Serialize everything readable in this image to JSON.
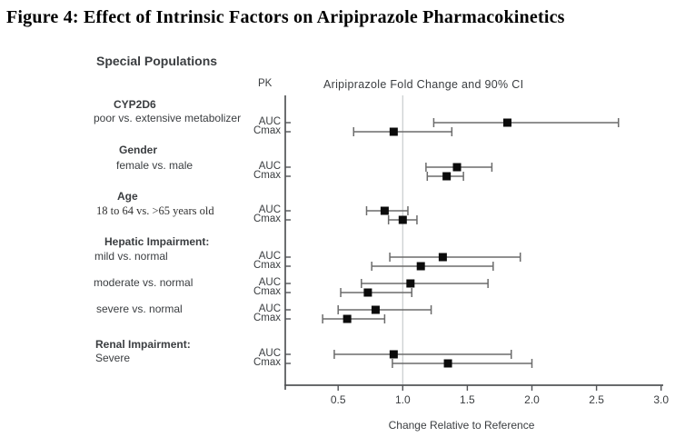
{
  "title": "Figure 4: Effect of Intrinsic Factors on Aripiprazole Pharmacokinetics",
  "chart_data": {
    "type": "forest",
    "section_header": "Special Populations",
    "pk_column_header": "PK",
    "title": "Aripiprazole Fold Change and 90% CI",
    "xlabel": "Change Relative to Reference",
    "xticks": [
      0.5,
      1.0,
      1.5,
      2.0,
      2.5,
      3.0
    ],
    "xtick_labels": [
      "0.5",
      "1.0",
      "1.5",
      "2.0",
      "2.5",
      "3.0"
    ],
    "xlim": [
      0.1,
      3.05
    ],
    "reference_line": 1.0,
    "grid": "single-reference-line",
    "legend": "none",
    "groups": [
      {
        "label": "CYP2D6",
        "sublabel": "poor vs. extensive metabolizer",
        "rows": [
          {
            "pk": "AUC",
            "estimate": 1.81,
            "ci_low": 1.24,
            "ci_high": 2.67
          },
          {
            "pk": "Cmax",
            "estimate": 0.93,
            "ci_low": 0.62,
            "ci_high": 1.38
          }
        ]
      },
      {
        "label": "Gender",
        "sublabel": "female vs. male",
        "rows": [
          {
            "pk": "AUC",
            "estimate": 1.42,
            "ci_low": 1.18,
            "ci_high": 1.69
          },
          {
            "pk": "Cmax",
            "estimate": 1.34,
            "ci_low": 1.19,
            "ci_high": 1.47
          }
        ]
      },
      {
        "label": "Age",
        "sublabel": "18 to 64 vs. >65 years old",
        "rows": [
          {
            "pk": "AUC",
            "estimate": 0.86,
            "ci_low": 0.72,
            "ci_high": 1.04
          },
          {
            "pk": "Cmax",
            "estimate": 1.0,
            "ci_low": 0.89,
            "ci_high": 1.11
          }
        ]
      },
      {
        "label": "Hepatic Impairment:",
        "sublabel": "mild vs. normal",
        "rows": [
          {
            "pk": "AUC",
            "estimate": 1.31,
            "ci_low": 0.9,
            "ci_high": 1.91
          },
          {
            "pk": "Cmax",
            "estimate": 1.14,
            "ci_low": 0.76,
            "ci_high": 1.7
          }
        ]
      },
      {
        "label": "",
        "sublabel": "moderate vs. normal",
        "rows": [
          {
            "pk": "AUC",
            "estimate": 1.06,
            "ci_low": 0.68,
            "ci_high": 1.66
          },
          {
            "pk": "Cmax",
            "estimate": 0.73,
            "ci_low": 0.52,
            "ci_high": 1.07
          }
        ]
      },
      {
        "label": "",
        "sublabel": "severe vs. normal",
        "rows": [
          {
            "pk": "AUC",
            "estimate": 0.79,
            "ci_low": 0.5,
            "ci_high": 1.22
          },
          {
            "pk": "Cmax",
            "estimate": 0.57,
            "ci_low": 0.38,
            "ci_high": 0.86
          }
        ]
      },
      {
        "label": "Renal Impairment:",
        "sublabel": "Severe",
        "rows": [
          {
            "pk": "AUC",
            "estimate": 0.93,
            "ci_low": 0.47,
            "ci_high": 1.84
          },
          {
            "pk": "Cmax",
            "estimate": 1.35,
            "ci_low": 0.92,
            "ci_high": 2.0
          }
        ]
      }
    ]
  }
}
